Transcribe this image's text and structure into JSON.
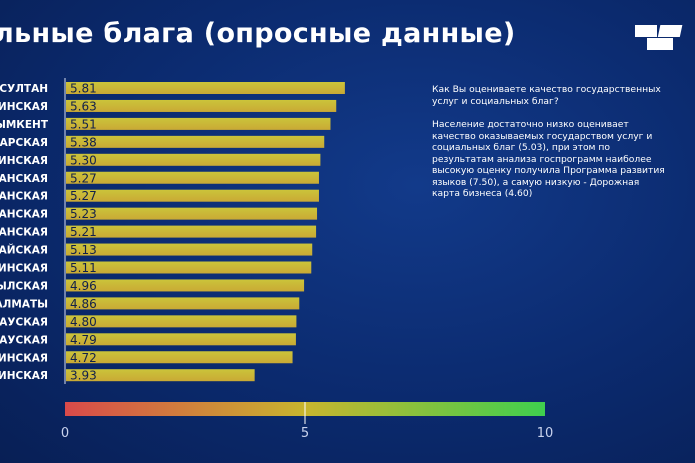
{
  "header": {
    "title": "льные блага (опросные данные)"
  },
  "logo": {
    "icon": "logo-icon",
    "color": "#ffffff"
  },
  "note": {
    "question": "Как Вы оцениваете качество государственных услуг и социальных благ?",
    "finding": "Население достаточно низко оценивает качество оказываемых государством услуг и социальных благ (5.03), при этом по результатам анализа госпрограмм наиболее высокую оценку получила Программа развития языков (7.50), а самую низкую - Дорожная карта бизнеса (4.60)"
  },
  "chart_data": {
    "type": "bar",
    "orientation": "horizontal",
    "categories": [
      "Р-СУЛТАН",
      "ДИНСКАЯ",
      "ЫМКЕНТ",
      "ДАРСКАЯ",
      "БИНСКАЯ",
      "СТАНСКАЯ",
      "СТАНСКАЯ",
      "СТАНСКАЯ",
      "СТАНСКАЯ",
      "НАЙСКАЯ",
      "ЛИНСКАЯ",
      "БЫЛСКАЯ",
      "АЛМАТЫ",
      "СТАУСКАЯ",
      "ИРАУСКАЯ",
      "ТИНСКАЯ",
      "ДИНСКАЯ"
    ],
    "values": [
      5.81,
      5.63,
      5.51,
      5.38,
      5.3,
      5.27,
      5.27,
      5.23,
      5.21,
      5.13,
      5.11,
      4.96,
      4.86,
      4.8,
      4.79,
      4.72,
      3.93
    ],
    "value_labels": [
      "5.81",
      "5.63",
      "5.51",
      "5.38",
      "5.30",
      "5.27",
      "5.27",
      "5.23",
      "5.21",
      "5.13",
      "5.11",
      "4.96",
      "4.86",
      "4.80",
      "4.79",
      "4.72",
      "3.93"
    ],
    "xlim": [
      0,
      10
    ],
    "xticks": [
      "0",
      "5",
      "10"
    ],
    "color_scale": [
      "#d94a4a",
      "#c8b52e",
      "#3fcf4e"
    ],
    "bar_color_top": "#cbc43a",
    "bar_color_bottom": "#c9a935"
  }
}
